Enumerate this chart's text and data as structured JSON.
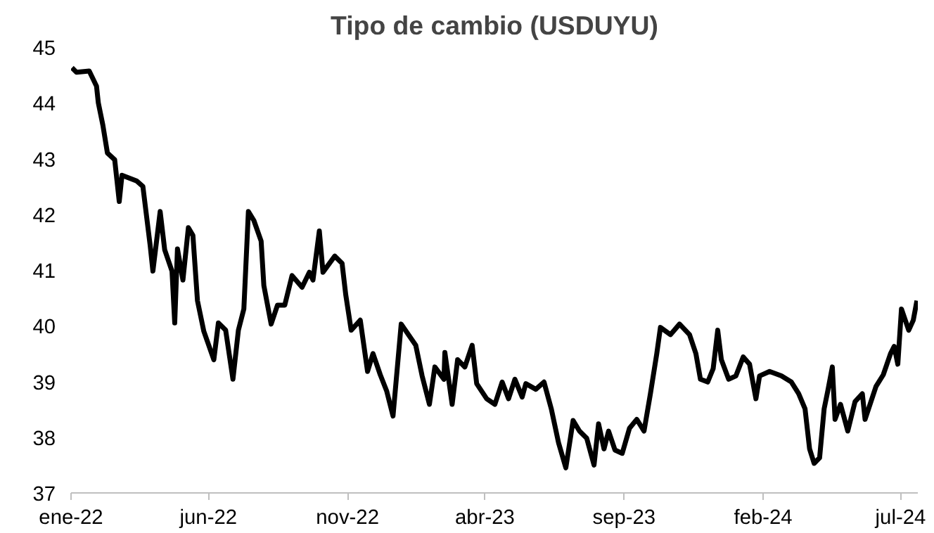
{
  "chart_data": {
    "type": "line",
    "title": "Tipo de cambio (USDUYU)",
    "xlim": [
      "2022-01-01",
      "2024-07-20"
    ],
    "ylim": [
      37,
      45
    ],
    "yticks": [
      37,
      38,
      39,
      40,
      41,
      42,
      43,
      44,
      45
    ],
    "xticks": [
      {
        "value": "2022-01-01",
        "label": "ene-22"
      },
      {
        "value": "2022-06-01",
        "label": "jun-22"
      },
      {
        "value": "2022-11-01",
        "label": "nov-22"
      },
      {
        "value": "2023-04-01",
        "label": "abr-23"
      },
      {
        "value": "2023-09-01",
        "label": "sep-23"
      },
      {
        "value": "2024-02-01",
        "label": "feb-24"
      },
      {
        "value": "2024-07-01",
        "label": "jul-24"
      }
    ],
    "grid": false,
    "marker": "none",
    "line_style": "solid",
    "series": [
      {
        "color": "#000000",
        "x": [
          "2022-01-02",
          "2022-01-07",
          "2022-01-21",
          "2022-01-29",
          "2022-01-31",
          "2022-02-05",
          "2022-02-10",
          "2022-02-18",
          "2022-02-23",
          "2022-02-26",
          "2022-03-14",
          "2022-03-21",
          "2022-03-29",
          "2022-04-01",
          "2022-04-09",
          "2022-04-14",
          "2022-04-22",
          "2022-04-25",
          "2022-04-28",
          "2022-05-04",
          "2022-05-10",
          "2022-05-15",
          "2022-05-20",
          "2022-05-27",
          "2022-06-07",
          "2022-06-12",
          "2022-06-20",
          "2022-06-28",
          "2022-07-04",
          "2022-07-10",
          "2022-07-15",
          "2022-07-21",
          "2022-07-29",
          "2022-08-01",
          "2022-08-09",
          "2022-08-16",
          "2022-08-24",
          "2022-09-01",
          "2022-09-12",
          "2022-09-20",
          "2022-09-24",
          "2022-10-01",
          "2022-10-05",
          "2022-10-18",
          "2022-10-26",
          "2022-10-30",
          "2022-11-05",
          "2022-11-15",
          "2022-11-23",
          "2022-11-29",
          "2022-12-07",
          "2022-12-14",
          "2022-12-21",
          "2022-12-30",
          "2023-01-07",
          "2023-01-15",
          "2023-01-22",
          "2023-01-30",
          "2023-02-05",
          "2023-02-15",
          "2023-02-16",
          "2023-02-24",
          "2023-03-02",
          "2023-03-10",
          "2023-03-18",
          "2023-03-23",
          "2023-04-03",
          "2023-04-12",
          "2023-04-20",
          "2023-04-27",
          "2023-05-04",
          "2023-05-12",
          "2023-05-16",
          "2023-05-27",
          "2023-06-05",
          "2023-06-13",
          "2023-06-21",
          "2023-06-29",
          "2023-07-07",
          "2023-07-14",
          "2023-07-22",
          "2023-07-30",
          "2023-08-04",
          "2023-08-10",
          "2023-08-15",
          "2023-08-22",
          "2023-08-30",
          "2023-09-07",
          "2023-09-15",
          "2023-09-23",
          "2023-09-30",
          "2023-10-07",
          "2023-10-11",
          "2023-10-22",
          "2023-11-01",
          "2023-11-12",
          "2023-11-19",
          "2023-11-24",
          "2023-12-02",
          "2023-12-08",
          "2023-12-13",
          "2023-12-17",
          "2023-12-25",
          "2024-01-02",
          "2024-01-10",
          "2024-01-17",
          "2024-01-24",
          "2024-01-28",
          "2024-02-08",
          "2024-02-21",
          "2024-03-03",
          "2024-03-11",
          "2024-03-18",
          "2024-03-23",
          "2024-03-28",
          "2024-04-03",
          "2024-04-08",
          "2024-04-12",
          "2024-04-17",
          "2024-04-20",
          "2024-04-26",
          "2024-05-04",
          "2024-05-12",
          "2024-05-20",
          "2024-05-23",
          "2024-06-04",
          "2024-06-12",
          "2024-06-20",
          "2024-06-24",
          "2024-06-28",
          "2024-07-02",
          "2024-07-10",
          "2024-07-15",
          "2024-07-19"
        ],
        "values": [
          44.63,
          44.55,
          44.57,
          44.3,
          44.0,
          43.6,
          43.1,
          42.98,
          42.23,
          42.7,
          42.6,
          42.5,
          41.44,
          40.98,
          42.05,
          41.36,
          40.98,
          40.05,
          41.38,
          40.82,
          41.76,
          41.62,
          40.45,
          39.9,
          39.39,
          40.05,
          39.92,
          39.04,
          39.92,
          40.3,
          42.05,
          41.89,
          41.52,
          40.72,
          40.03,
          40.37,
          40.37,
          40.9,
          40.69,
          40.96,
          40.82,
          41.7,
          40.96,
          41.25,
          41.12,
          40.56,
          39.92,
          40.1,
          39.18,
          39.5,
          39.12,
          38.83,
          38.38,
          40.03,
          39.84,
          39.65,
          39.1,
          38.59,
          39.26,
          39.04,
          39.52,
          38.59,
          39.39,
          39.26,
          39.65,
          38.96,
          38.69,
          38.59,
          38.99,
          38.69,
          39.04,
          38.72,
          38.96,
          38.86,
          38.99,
          38.51,
          37.9,
          37.45,
          38.3,
          38.11,
          37.98,
          37.5,
          38.24,
          37.79,
          38.11,
          37.77,
          37.71,
          38.16,
          38.32,
          38.11,
          38.78,
          39.5,
          39.97,
          39.84,
          40.03,
          39.84,
          39.5,
          39.04,
          38.99,
          39.23,
          39.92,
          39.39,
          39.04,
          39.1,
          39.44,
          39.31,
          38.69,
          39.1,
          39.18,
          39.1,
          38.99,
          38.78,
          38.51,
          37.79,
          37.53,
          37.63,
          38.51,
          38.83,
          39.26,
          38.32,
          38.59,
          38.11,
          38.64,
          38.78,
          38.32,
          38.91,
          39.12,
          39.5,
          39.63,
          39.31,
          40.3,
          39.92,
          40.1,
          40.45
        ]
      }
    ]
  }
}
